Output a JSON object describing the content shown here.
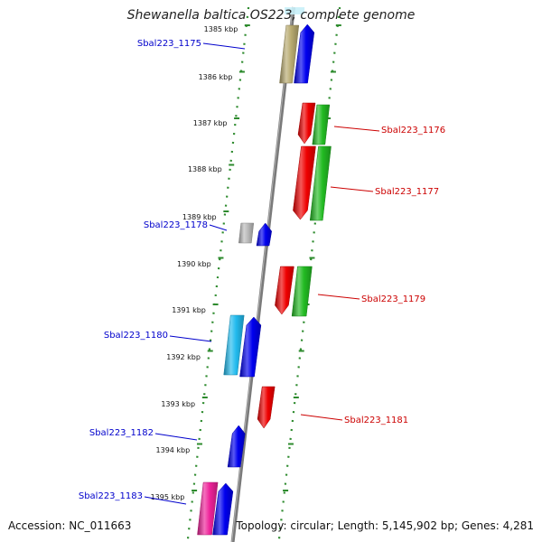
{
  "title": "Shewanella baltica OS223, complete genome",
  "footer": {
    "accession": "Accession: NC_011663",
    "summary": "Topology: circular; Length: 5,145,902 bp; Genes: 4,281"
  },
  "ruler": {
    "labels": [
      "1385 kbp",
      "1386 kbp",
      "1387 kbp",
      "1388 kbp",
      "1389 kbp",
      "1390 kbp",
      "1391 kbp",
      "1392 kbp",
      "1393 kbp",
      "1394 kbp",
      "1395 kbp"
    ]
  },
  "colors": {
    "backbone": "#7a7a7a",
    "dotted_track": "#2e8b2e",
    "reverse_label": "#0000cc",
    "forward_label": "#cc0000",
    "blue": "#0000ee",
    "red": "#ee0000",
    "green": "#22bb22",
    "gray": "#bbbbbb",
    "cyan": "#22bbee",
    "khaki": "#b8aa70",
    "magenta": "#ee2299"
  },
  "genes": [
    {
      "id": "Sbal223_1175",
      "label": "Sbal223_1175",
      "strand": "reverse"
    },
    {
      "id": "Sbal223_1176",
      "label": "Sbal223_1176",
      "strand": "forward"
    },
    {
      "id": "Sbal223_1177",
      "label": "Sbal223_1177",
      "strand": "forward"
    },
    {
      "id": "Sbal223_1178",
      "label": "Sbal223_1178",
      "strand": "reverse"
    },
    {
      "id": "Sbal223_1179",
      "label": "Sbal223_1179",
      "strand": "forward"
    },
    {
      "id": "Sbal223_1180",
      "label": "Sbal223_1180",
      "strand": "reverse"
    },
    {
      "id": "Sbal223_1181",
      "label": "Sbal223_1181",
      "strand": "forward"
    },
    {
      "id": "Sbal223_1182",
      "label": "Sbal223_1182",
      "strand": "reverse"
    },
    {
      "id": "Sbal223_1183",
      "label": "Sbal223_1183",
      "strand": "reverse"
    }
  ]
}
